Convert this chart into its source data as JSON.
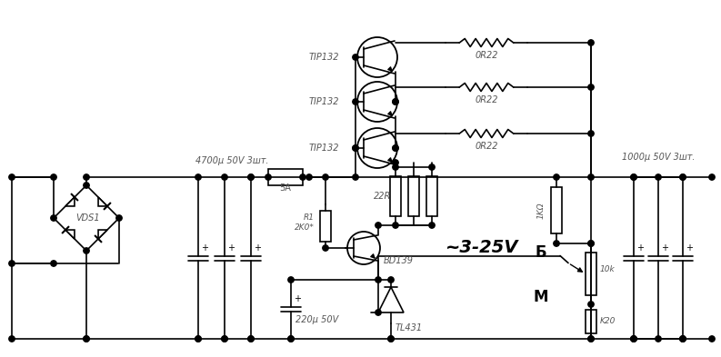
{
  "bg": "#ffffff",
  "lc": "#000000",
  "ic": "#555555",
  "figsize": [
    7.93,
    3.93
  ],
  "dpi": 100,
  "cap4700": "4700μ 50V 3шт.",
  "fuse": "5A",
  "r1": "R1\n2K0*",
  "r22": "22R",
  "tip132": "TIP132",
  "or22": "0R22",
  "bd139": "BD139",
  "tl431": "TL431",
  "cap220": "220μ 50V",
  "cap1000": "1000μ 50V 3шт.",
  "r1k": "1KΩ",
  "r10k": "10k",
  "rk20": "K20",
  "out": "~3-25V",
  "B": "Б",
  "M": "М",
  "vds": "VDS1"
}
